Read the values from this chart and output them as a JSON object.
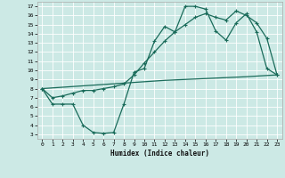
{
  "xlabel": "Humidex (Indice chaleur)",
  "bg_color": "#cce9e5",
  "line_color": "#1a6b5a",
  "grid_color": "#b0d8d3",
  "xlim": [
    -0.5,
    23.5
  ],
  "ylim": [
    2.5,
    17.5
  ],
  "xticks": [
    0,
    1,
    2,
    3,
    4,
    5,
    6,
    7,
    8,
    9,
    10,
    11,
    12,
    13,
    14,
    15,
    16,
    17,
    18,
    19,
    20,
    21,
    22,
    23
  ],
  "yticks": [
    3,
    4,
    5,
    6,
    7,
    8,
    9,
    10,
    11,
    12,
    13,
    14,
    15,
    16,
    17
  ],
  "line1_x": [
    0,
    1,
    2,
    3,
    4,
    5,
    6,
    7,
    8,
    9,
    10,
    11,
    12,
    13,
    14,
    15,
    16,
    17,
    18,
    19,
    20,
    21,
    22,
    23
  ],
  "line1_y": [
    8.0,
    6.3,
    6.3,
    6.3,
    4.0,
    3.2,
    3.1,
    3.2,
    6.3,
    9.8,
    10.2,
    13.2,
    14.8,
    14.2,
    17.0,
    17.0,
    16.7,
    14.3,
    13.3,
    15.2,
    16.2,
    14.2,
    10.2,
    9.5
  ],
  "line2_x": [
    0,
    4,
    8,
    12,
    16,
    20,
    23
  ],
  "line2_y": [
    8.0,
    8.3,
    8.6,
    8.9,
    9.1,
    9.3,
    9.5
  ],
  "line3_x": [
    0,
    1,
    2,
    3,
    4,
    5,
    6,
    7,
    8,
    9,
    10,
    11,
    12,
    13,
    14,
    15,
    16,
    17,
    18,
    19,
    20,
    21,
    22,
    23
  ],
  "line3_y": [
    8.0,
    7.0,
    7.2,
    7.5,
    7.8,
    7.8,
    8.0,
    8.2,
    8.5,
    9.5,
    10.8,
    12.0,
    13.2,
    14.2,
    15.0,
    15.8,
    16.2,
    15.8,
    15.5,
    16.5,
    16.0,
    15.2,
    13.5,
    9.5
  ]
}
